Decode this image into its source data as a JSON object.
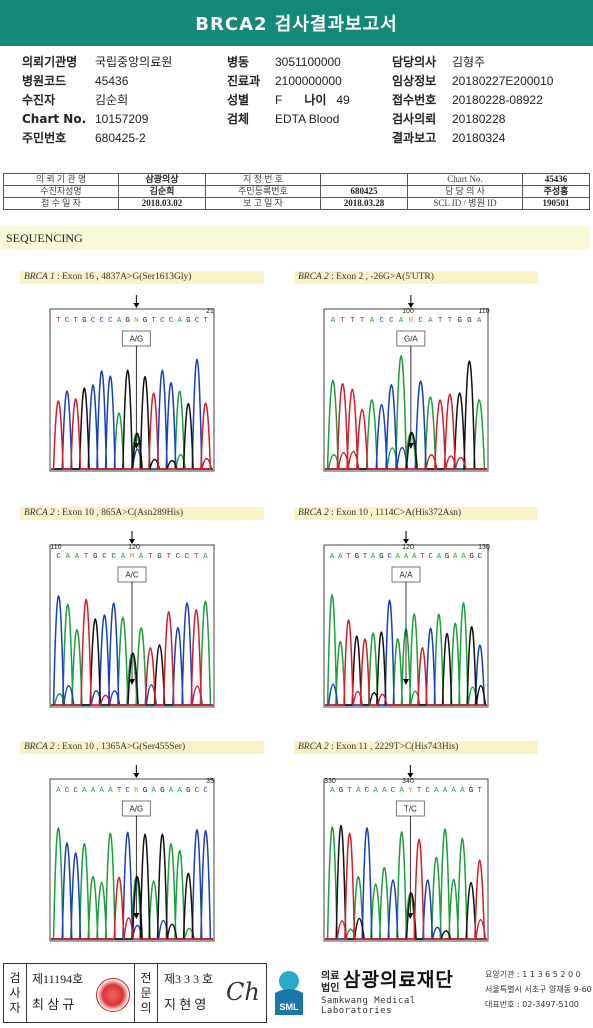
{
  "report_title": "BRCA2 검사결과보고서",
  "info": {
    "rows": [
      [
        {
          "label": "의뢰기관명",
          "value": "국립중앙의료원"
        },
        {
          "label": "병동",
          "value": "3051100000"
        },
        {
          "label": "담당의사",
          "value": "김형주"
        }
      ],
      [
        {
          "label": "병원코드",
          "value": "45436"
        },
        {
          "label": "진료과",
          "value": "2100000000"
        },
        {
          "label": "임상정보",
          "value": "20180227E200010"
        }
      ],
      [
        {
          "label": "수진자",
          "value": "김순희"
        },
        {
          "label": "성별",
          "value": "F"
        },
        {
          "label": "접수번호",
          "value": "20180228-08922"
        }
      ],
      [
        {
          "label": "Chart No.",
          "value": "10157209"
        },
        {
          "label": "검체",
          "value": "EDTA Blood"
        },
        {
          "label": "검사의뢰",
          "value": "20180228"
        }
      ],
      [
        {
          "label": "주민번호",
          "value": "680425-2"
        },
        {
          "label": "",
          "value": ""
        },
        {
          "label": "결과보고",
          "value": "20180324"
        }
      ]
    ],
    "age_label": "나이",
    "age_value": "49"
  },
  "patient_table": {
    "rows": [
      [
        "의 뢰 기 관 명",
        "삼광의상",
        "지 정 번 호",
        "",
        "Chart No.",
        "45436"
      ],
      [
        "수진자성명",
        "김순희",
        "주민등록번호",
        "680425",
        "담 당 의 사",
        "주성흥"
      ],
      [
        "접 수 일 자",
        "2018.03.02",
        "보 고 일 자",
        "2018.03.28",
        "SCL  ID / 병원 ID",
        "190501"
      ]
    ]
  },
  "section_title": "SEQUENCING",
  "panels": [
    {
      "gene": "BRCA 1",
      "desc": " : Exon 16 , 4837A>G(Ser1613Gly)",
      "seq": "TCTGCCCAGNGTCCAGCT",
      "pos_left": "",
      "pos_mid": "",
      "pos_right": "21",
      "call": "A/G",
      "seed": 3
    },
    {
      "gene": "BRCA 2",
      "desc": " : Exon 2 , -26G>A(5'UTR)",
      "seq": "ATTTACCARCATTGGA",
      "pos_left": "",
      "pos_mid": "100",
      "pos_right": "110",
      "call": "G/A",
      "seed": 7
    },
    {
      "gene": "BRCA 2",
      "desc": " : Exon 10 , 865A>C(Asn289His)",
      "seq": "CAATGCCAMATGTCCTA",
      "pos_left": "110",
      "pos_mid": "120",
      "pos_right": "",
      "call": "A/C",
      "seed": 11
    },
    {
      "gene": "BRCA 2",
      "desc": " : Exon 10 , 1114C>A(His372Asn)",
      "seq": "AATGTAGCAAATCAGAAGC",
      "pos_left": "",
      "pos_mid": "120",
      "pos_right": "130",
      "call": "A/A",
      "seed": 17
    },
    {
      "gene": "BRCA 2",
      "desc": " : Exon 10 , 1365A>G(Ser455Ser)",
      "seq": "ACCAAAATCRGAGAAGCC",
      "pos_left": "",
      "pos_mid": "",
      "pos_right": "35",
      "call": "A/G",
      "seed": 23
    },
    {
      "gene": "BRCA 2",
      "desc": " : Exon 11 , 2229T>C(His743His)",
      "seq": "AGTACAACAYTCAAAAGT",
      "pos_left": "330",
      "pos_mid": "340",
      "pos_right": "",
      "call": "T/C",
      "seed": 29
    }
  ],
  "footer": {
    "label_left": [
      "검",
      "사",
      "자"
    ],
    "label_right": [
      "전",
      "문",
      "의"
    ],
    "inspector_no": "제11194호",
    "inspector_name": "최 삼 규",
    "specialist_no": "제3 3 3 호",
    "specialist_name": "지 현 영",
    "signature": "Ch",
    "logo_badge": "SML",
    "logo_small_1": "의료",
    "logo_small_2": "법인",
    "logo_name": "삼광의료재단",
    "logo_eng": "Samkwang Medical Laboratories",
    "contact_1": "요양기관 : 1 1 3 6 5 2 0 0",
    "contact_2": "서울특별시 서초구 양재동 9-60",
    "contact_3": "대표번호 : 02-3497-5100"
  },
  "colors": {
    "title_bar": "#13897a",
    "A": "#1e9e3c",
    "C": "#1a3fb8",
    "G": "#111111",
    "T": "#d21f2a"
  }
}
